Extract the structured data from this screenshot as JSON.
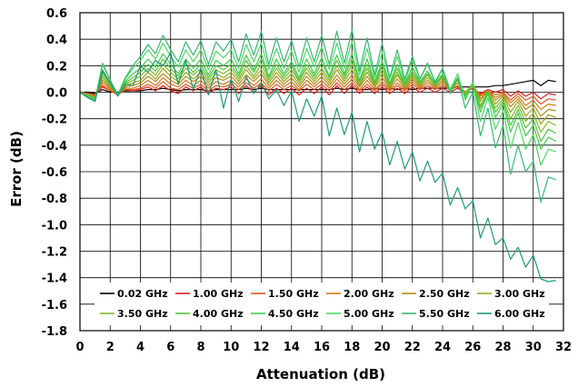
{
  "chart_data": {
    "type": "line",
    "xlabel": "Attenuation (dB)",
    "ylabel": "Error (dB)",
    "xlim": [
      0,
      32
    ],
    "ylim": [
      -1.8,
      0.6
    ],
    "xticks": [
      0,
      2,
      4,
      6,
      8,
      10,
      12,
      14,
      16,
      18,
      20,
      22,
      24,
      26,
      28,
      30,
      32
    ],
    "yticks": [
      0.6,
      0.4,
      0.2,
      0.0,
      -0.2,
      -0.4,
      -0.6,
      -0.8,
      -1.0,
      -1.2,
      -1.4,
      -1.6,
      -1.8
    ],
    "ytick_labels": [
      "0.6",
      "0.4",
      "0.2",
      "0.0",
      "-0.2",
      "-0.4",
      "-0.6",
      "-0.8",
      "-1.0",
      "-1.2",
      "-1.4",
      "-1.6",
      "-1.8"
    ],
    "grid": true,
    "legend_position": "bottom-inside",
    "x": [
      0,
      0.5,
      1,
      1.5,
      2,
      2.5,
      3,
      3.5,
      4,
      4.5,
      5,
      5.5,
      6,
      6.5,
      7,
      7.5,
      8,
      8.5,
      9,
      9.5,
      10,
      10.5,
      11,
      11.5,
      12,
      12.5,
      13,
      13.5,
      14,
      14.5,
      15,
      15.5,
      16,
      16.5,
      17,
      17.5,
      18,
      18.5,
      19,
      19.5,
      20,
      20.5,
      21,
      21.5,
      22,
      22.5,
      23,
      23.5,
      24,
      24.5,
      25,
      25.5,
      26,
      26.5,
      27,
      27.5,
      28,
      28.5,
      29,
      29.5,
      30,
      30.5,
      31,
      31.5
    ],
    "series": [
      {
        "name": "0.02 GHz",
        "color": "#000000",
        "values": [
          0.0,
          0.0,
          -0.01,
          0.02,
          0.0,
          0.0,
          0.01,
          0.01,
          0.01,
          0.02,
          0.02,
          0.03,
          0.02,
          0.01,
          0.02,
          0.02,
          0.02,
          0.01,
          0.02,
          0.02,
          0.02,
          0.02,
          0.03,
          0.02,
          0.03,
          0.02,
          0.02,
          0.02,
          0.02,
          0.02,
          0.02,
          0.02,
          0.02,
          0.02,
          0.03,
          0.02,
          0.03,
          0.02,
          0.02,
          0.03,
          0.02,
          0.03,
          0.02,
          0.03,
          0.02,
          0.03,
          0.03,
          0.03,
          0.03,
          0.03,
          0.04,
          0.04,
          0.04,
          0.04,
          0.04,
          0.05,
          0.05,
          0.06,
          0.07,
          0.08,
          0.09,
          0.05,
          0.09,
          0.08
        ]
      },
      {
        "name": "1.00 GHz",
        "color": "#d62020",
        "values": [
          0.0,
          -0.01,
          -0.02,
          0.04,
          0.01,
          -0.02,
          0.02,
          0.01,
          0.02,
          0.04,
          0.01,
          0.05,
          0.01,
          -0.01,
          0.04,
          0.01,
          0.04,
          -0.01,
          0.03,
          0.02,
          0.04,
          -0.01,
          0.05,
          0.0,
          0.05,
          -0.02,
          0.03,
          -0.01,
          0.03,
          -0.02,
          0.03,
          -0.01,
          0.04,
          -0.02,
          0.05,
          -0.01,
          0.05,
          -0.01,
          0.04,
          -0.01,
          0.04,
          -0.01,
          0.03,
          -0.01,
          0.04,
          0.0,
          0.03,
          0.0,
          0.03,
          0.0,
          0.03,
          -0.01,
          0.03,
          -0.01,
          0.02,
          0.0,
          0.02,
          -0.03,
          0.01,
          -0.03,
          0.0,
          -0.05,
          -0.01,
          -0.02
        ]
      },
      {
        "name": "1.50 GHz",
        "color": "#e0561e",
        "values": [
          0.0,
          -0.01,
          -0.02,
          0.05,
          0.01,
          -0.02,
          0.02,
          0.02,
          0.03,
          0.06,
          0.03,
          0.08,
          0.03,
          0.02,
          0.06,
          0.03,
          0.06,
          0.01,
          0.05,
          0.04,
          0.06,
          0.02,
          0.07,
          0.03,
          0.07,
          0.01,
          0.06,
          0.02,
          0.05,
          0.01,
          0.06,
          0.02,
          0.06,
          0.01,
          0.07,
          0.02,
          0.07,
          0.01,
          0.06,
          0.01,
          0.06,
          0.01,
          0.05,
          0.01,
          0.06,
          0.02,
          0.05,
          0.02,
          0.05,
          0.02,
          0.04,
          0.0,
          0.04,
          -0.02,
          0.01,
          -0.02,
          0.0,
          -0.06,
          -0.01,
          -0.06,
          -0.03,
          -0.09,
          -0.05,
          -0.06
        ]
      },
      {
        "name": "2.00 GHz",
        "color": "#d4781c",
        "values": [
          0.0,
          -0.01,
          -0.03,
          0.07,
          0.02,
          -0.02,
          0.03,
          0.03,
          0.05,
          0.09,
          0.05,
          0.11,
          0.06,
          0.04,
          0.09,
          0.05,
          0.09,
          0.03,
          0.08,
          0.06,
          0.09,
          0.04,
          0.1,
          0.05,
          0.1,
          0.03,
          0.09,
          0.04,
          0.08,
          0.02,
          0.09,
          0.04,
          0.09,
          0.03,
          0.1,
          0.04,
          0.1,
          0.02,
          0.09,
          0.02,
          0.08,
          0.02,
          0.07,
          0.02,
          0.08,
          0.03,
          0.07,
          0.03,
          0.07,
          0.02,
          0.05,
          0.0,
          0.05,
          -0.03,
          0.01,
          -0.04,
          -0.01,
          -0.08,
          -0.03,
          -0.1,
          -0.06,
          -0.13,
          -0.09,
          -0.1
        ]
      },
      {
        "name": "2.50 GHz",
        "color": "#b08a18",
        "values": [
          0.0,
          -0.02,
          -0.03,
          0.09,
          0.03,
          -0.02,
          0.04,
          0.05,
          0.07,
          0.12,
          0.08,
          0.14,
          0.09,
          0.06,
          0.12,
          0.08,
          0.12,
          0.05,
          0.11,
          0.09,
          0.12,
          0.06,
          0.13,
          0.08,
          0.14,
          0.05,
          0.12,
          0.06,
          0.11,
          0.04,
          0.12,
          0.06,
          0.12,
          0.05,
          0.13,
          0.06,
          0.13,
          0.04,
          0.12,
          0.04,
          0.11,
          0.03,
          0.1,
          0.03,
          0.1,
          0.04,
          0.09,
          0.04,
          0.09,
          0.02,
          0.07,
          0.0,
          0.06,
          -0.05,
          0.01,
          -0.06,
          -0.02,
          -0.11,
          -0.05,
          -0.13,
          -0.09,
          -0.18,
          -0.13,
          -0.14
        ]
      },
      {
        "name": "3.00 GHz",
        "color": "#94a81c",
        "values": [
          0.0,
          -0.02,
          -0.04,
          0.11,
          0.04,
          -0.02,
          0.05,
          0.07,
          0.09,
          0.15,
          0.1,
          0.18,
          0.12,
          0.08,
          0.15,
          0.1,
          0.15,
          0.07,
          0.14,
          0.11,
          0.15,
          0.08,
          0.17,
          0.1,
          0.17,
          0.07,
          0.15,
          0.08,
          0.14,
          0.06,
          0.15,
          0.08,
          0.15,
          0.07,
          0.17,
          0.08,
          0.17,
          0.05,
          0.15,
          0.05,
          0.14,
          0.04,
          0.13,
          0.04,
          0.12,
          0.05,
          0.11,
          0.05,
          0.11,
          0.02,
          0.09,
          -0.01,
          0.07,
          -0.07,
          0.01,
          -0.09,
          -0.03,
          -0.15,
          -0.07,
          -0.18,
          -0.12,
          -0.24,
          -0.17,
          -0.19
        ]
      },
      {
        "name": "3.50 GHz",
        "color": "#7cb82a",
        "values": [
          0.0,
          -0.02,
          -0.04,
          0.13,
          0.05,
          -0.02,
          0.06,
          0.09,
          0.12,
          0.18,
          0.13,
          0.21,
          0.15,
          0.1,
          0.18,
          0.13,
          0.18,
          0.09,
          0.17,
          0.14,
          0.18,
          0.1,
          0.2,
          0.12,
          0.21,
          0.09,
          0.18,
          0.1,
          0.17,
          0.08,
          0.18,
          0.1,
          0.18,
          0.09,
          0.2,
          0.1,
          0.21,
          0.06,
          0.18,
          0.06,
          0.17,
          0.05,
          0.15,
          0.05,
          0.14,
          0.06,
          0.13,
          0.06,
          0.12,
          0.02,
          0.1,
          -0.02,
          0.07,
          -0.1,
          0.0,
          -0.12,
          -0.05,
          -0.2,
          -0.1,
          -0.22,
          -0.16,
          -0.3,
          -0.22,
          -0.25
        ]
      },
      {
        "name": "4.00 GHz",
        "color": "#55c43a",
        "values": [
          0.0,
          -0.03,
          -0.05,
          0.15,
          0.06,
          -0.02,
          0.07,
          0.11,
          0.15,
          0.21,
          0.16,
          0.25,
          0.18,
          0.12,
          0.21,
          0.15,
          0.21,
          0.11,
          0.2,
          0.17,
          0.21,
          0.12,
          0.24,
          0.15,
          0.25,
          0.11,
          0.21,
          0.12,
          0.2,
          0.09,
          0.21,
          0.12,
          0.22,
          0.11,
          0.24,
          0.12,
          0.25,
          0.08,
          0.21,
          0.07,
          0.2,
          0.06,
          0.18,
          0.06,
          0.16,
          0.07,
          0.14,
          0.06,
          0.13,
          0.02,
          0.11,
          -0.03,
          0.07,
          -0.12,
          0.0,
          -0.15,
          -0.07,
          -0.25,
          -0.13,
          -0.27,
          -0.2,
          -0.37,
          -0.28,
          -0.31
        ]
      },
      {
        "name": "4.50 GHz",
        "color": "#3ecc48",
        "values": [
          0.0,
          -0.03,
          -0.05,
          0.17,
          0.07,
          -0.02,
          0.08,
          0.14,
          0.18,
          0.25,
          0.19,
          0.29,
          0.21,
          0.14,
          0.25,
          0.18,
          0.25,
          0.13,
          0.24,
          0.2,
          0.25,
          0.14,
          0.28,
          0.17,
          0.29,
          0.12,
          0.25,
          0.14,
          0.23,
          0.11,
          0.25,
          0.14,
          0.26,
          0.12,
          0.28,
          0.14,
          0.29,
          0.09,
          0.25,
          0.08,
          0.23,
          0.07,
          0.21,
          0.07,
          0.19,
          0.08,
          0.16,
          0.06,
          0.14,
          0.01,
          0.11,
          -0.05,
          0.06,
          -0.15,
          -0.01,
          -0.19,
          -0.09,
          -0.3,
          -0.16,
          -0.33,
          -0.25,
          -0.43,
          -0.34,
          -0.37
        ]
      },
      {
        "name": "5.00 GHz",
        "color": "#4cd860",
        "values": [
          0.0,
          -0.04,
          -0.06,
          0.22,
          0.09,
          -0.02,
          0.1,
          0.18,
          0.24,
          0.32,
          0.25,
          0.37,
          0.27,
          0.19,
          0.32,
          0.23,
          0.32,
          0.17,
          0.31,
          0.26,
          0.32,
          0.18,
          0.36,
          0.23,
          0.37,
          0.17,
          0.33,
          0.18,
          0.31,
          0.15,
          0.33,
          0.19,
          0.34,
          0.17,
          0.37,
          0.18,
          0.38,
          0.13,
          0.33,
          0.11,
          0.3,
          0.1,
          0.27,
          0.09,
          0.24,
          0.1,
          0.21,
          0.08,
          0.18,
          0.02,
          0.14,
          -0.06,
          0.06,
          -0.22,
          -0.04,
          -0.28,
          -0.14,
          -0.42,
          -0.23,
          -0.43,
          -0.32,
          -0.55,
          -0.43,
          -0.45
        ]
      },
      {
        "name": "5.50 GHz",
        "color": "#36b870",
        "values": [
          0.0,
          -0.04,
          -0.06,
          0.21,
          0.09,
          -0.02,
          0.11,
          0.2,
          0.27,
          0.36,
          0.29,
          0.43,
          0.32,
          0.23,
          0.38,
          0.28,
          0.39,
          0.21,
          0.38,
          0.31,
          0.4,
          0.23,
          0.44,
          0.28,
          0.46,
          0.21,
          0.41,
          0.23,
          0.39,
          0.19,
          0.41,
          0.23,
          0.43,
          0.21,
          0.46,
          0.22,
          0.47,
          0.16,
          0.41,
          0.13,
          0.37,
          0.11,
          0.32,
          0.1,
          0.27,
          0.1,
          0.22,
          0.07,
          0.18,
          -0.01,
          0.11,
          -0.12,
          0.0,
          -0.33,
          -0.12,
          -0.42,
          -0.25,
          -0.62,
          -0.4,
          -0.6,
          -0.52,
          -0.83,
          -0.64,
          -0.66
        ]
      },
      {
        "name": "6.00 GHz",
        "color": "#1e9a78",
        "values": [
          0.0,
          -0.04,
          -0.07,
          0.16,
          0.07,
          -0.03,
          0.06,
          0.05,
          0.2,
          0.15,
          0.24,
          0.2,
          0.3,
          0.06,
          0.24,
          0.02,
          0.18,
          -0.02,
          0.17,
          -0.12,
          0.1,
          -0.07,
          0.12,
          -0.01,
          0.07,
          -0.05,
          0.02,
          -0.1,
          0.01,
          -0.22,
          -0.05,
          -0.18,
          -0.03,
          -0.33,
          -0.12,
          -0.32,
          -0.15,
          -0.45,
          -0.22,
          -0.43,
          -0.3,
          -0.55,
          -0.37,
          -0.58,
          -0.45,
          -0.67,
          -0.52,
          -0.68,
          -0.61,
          -0.85,
          -0.72,
          -0.88,
          -0.82,
          -1.1,
          -0.95,
          -1.15,
          -1.1,
          -1.26,
          -1.17,
          -1.32,
          -1.23,
          -1.41,
          -1.43,
          -1.42
        ]
      }
    ]
  }
}
